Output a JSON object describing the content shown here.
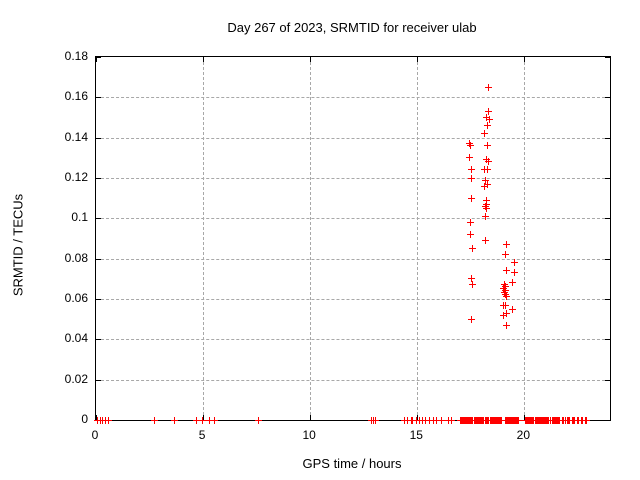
{
  "chart_data": {
    "type": "scatter",
    "title": "Day 267 of 2023, SRMTID for receiver ulab",
    "xlabel": "GPS time / hours",
    "ylabel": "SRMTID / TECUs",
    "xlim": [
      0,
      24
    ],
    "ylim": [
      0,
      0.18
    ],
    "grid": true,
    "legend": "none",
    "marker": "plus",
    "marker_color": "#ff0000",
    "xticks": [
      {
        "v": 0,
        "label": "0"
      },
      {
        "v": 5,
        "label": "5"
      },
      {
        "v": 10,
        "label": "10"
      },
      {
        "v": 15,
        "label": "15"
      },
      {
        "v": 20,
        "label": "20"
      }
    ],
    "yticks": [
      {
        "v": 0,
        "label": "0"
      },
      {
        "v": 0.02,
        "label": "0.02"
      },
      {
        "v": 0.04,
        "label": "0.04"
      },
      {
        "v": 0.06,
        "label": "0.06"
      },
      {
        "v": 0.08,
        "label": "0.08"
      },
      {
        "v": 0.1,
        "label": "0.1"
      },
      {
        "v": 0.12,
        "label": "0.12"
      },
      {
        "v": 0.14,
        "label": "0.14"
      },
      {
        "v": 0.16,
        "label": "0.16"
      },
      {
        "v": 0.18,
        "label": "0.18"
      }
    ],
    "series": [
      {
        "name": "SRMTID",
        "color": "#ff0000",
        "points": [
          [
            18.32,
            0.165
          ],
          [
            18.35,
            0.153
          ],
          [
            18.22,
            0.15
          ],
          [
            18.36,
            0.149
          ],
          [
            18.26,
            0.146
          ],
          [
            18.16,
            0.142
          ],
          [
            17.45,
            0.137
          ],
          [
            17.5,
            0.136
          ],
          [
            18.26,
            0.136
          ],
          [
            17.43,
            0.13
          ],
          [
            18.22,
            0.129
          ],
          [
            18.32,
            0.128
          ],
          [
            17.52,
            0.124
          ],
          [
            18.15,
            0.124
          ],
          [
            18.27,
            0.124
          ],
          [
            17.55,
            0.12
          ],
          [
            18.18,
            0.119
          ],
          [
            18.29,
            0.117
          ],
          [
            18.15,
            0.116
          ],
          [
            17.54,
            0.11
          ],
          [
            18.22,
            0.109
          ],
          [
            18.25,
            0.107
          ],
          [
            18.21,
            0.106
          ],
          [
            18.24,
            0.105
          ],
          [
            18.21,
            0.101
          ],
          [
            17.47,
            0.098
          ],
          [
            17.48,
            0.092
          ],
          [
            18.18,
            0.089
          ],
          [
            19.15,
            0.087
          ],
          [
            17.57,
            0.085
          ],
          [
            19.12,
            0.082
          ],
          [
            19.54,
            0.078
          ],
          [
            19.18,
            0.074
          ],
          [
            19.55,
            0.073
          ],
          [
            17.55,
            0.07
          ],
          [
            19.46,
            0.068
          ],
          [
            19.07,
            0.067
          ],
          [
            17.58,
            0.067
          ],
          [
            19.1,
            0.066
          ],
          [
            19.05,
            0.065
          ],
          [
            19.11,
            0.064
          ],
          [
            19.07,
            0.063
          ],
          [
            19.13,
            0.062
          ],
          [
            19.16,
            0.061
          ],
          [
            19.05,
            0.057
          ],
          [
            19.14,
            0.057
          ],
          [
            19.46,
            0.055
          ],
          [
            19.15,
            0.053
          ],
          [
            19.05,
            0.052
          ],
          [
            17.55,
            0.05
          ],
          [
            19.15,
            0.047
          ],
          [
            0.05,
            0
          ],
          [
            0.2,
            0
          ],
          [
            0.32,
            0
          ],
          [
            0.45,
            0
          ],
          [
            0.58,
            0
          ],
          [
            2.75,
            0
          ],
          [
            3.68,
            0
          ],
          [
            4.7,
            0
          ],
          [
            4.97,
            0
          ],
          [
            5.32,
            0
          ],
          [
            5.53,
            0
          ],
          [
            7.58,
            0
          ],
          [
            12.85,
            0
          ],
          [
            12.96,
            0
          ],
          [
            13.07,
            0
          ],
          [
            14.4,
            0
          ],
          [
            14.55,
            0
          ],
          [
            14.73,
            0
          ],
          [
            14.78,
            0
          ],
          [
            14.98,
            0
          ],
          [
            15.09,
            0
          ],
          [
            15.25,
            0
          ],
          [
            15.37,
            0
          ],
          [
            15.56,
            0
          ],
          [
            15.77,
            0
          ],
          [
            15.92,
            0
          ],
          [
            16.12,
            0
          ],
          [
            16.47,
            0
          ],
          [
            16.62,
            0
          ],
          [
            17.0,
            0
          ],
          [
            17.05,
            0
          ],
          [
            17.1,
            0
          ],
          [
            17.15,
            0
          ],
          [
            17.2,
            0
          ],
          [
            17.25,
            0
          ],
          [
            17.3,
            0
          ],
          [
            17.35,
            0
          ],
          [
            17.4,
            0
          ],
          [
            17.45,
            0
          ],
          [
            17.5,
            0
          ],
          [
            17.55,
            0
          ],
          [
            17.6,
            0
          ],
          [
            17.65,
            0
          ],
          [
            17.7,
            0
          ],
          [
            17.75,
            0
          ],
          [
            17.8,
            0
          ],
          [
            17.85,
            0
          ],
          [
            17.9,
            0
          ],
          [
            17.95,
            0
          ],
          [
            18.0,
            0
          ],
          [
            18.05,
            0
          ],
          [
            18.1,
            0
          ],
          [
            18.2,
            0
          ],
          [
            18.25,
            0
          ],
          [
            18.3,
            0
          ],
          [
            18.35,
            0
          ],
          [
            18.4,
            0
          ],
          [
            18.45,
            0
          ],
          [
            18.5,
            0
          ],
          [
            18.55,
            0
          ],
          [
            18.6,
            0
          ],
          [
            18.65,
            0
          ],
          [
            18.7,
            0
          ],
          [
            18.75,
            0
          ],
          [
            18.8,
            0
          ],
          [
            18.85,
            0
          ],
          [
            18.9,
            0
          ],
          [
            18.95,
            0
          ],
          [
            19.1,
            0
          ],
          [
            19.15,
            0
          ],
          [
            19.2,
            0
          ],
          [
            19.25,
            0
          ],
          [
            19.3,
            0
          ],
          [
            19.35,
            0
          ],
          [
            19.4,
            0
          ],
          [
            19.45,
            0
          ],
          [
            19.5,
            0
          ],
          [
            19.55,
            0
          ],
          [
            19.6,
            0
          ],
          [
            19.65,
            0
          ],
          [
            19.7,
            0
          ],
          [
            19.75,
            0
          ],
          [
            20.05,
            0
          ],
          [
            20.1,
            0
          ],
          [
            20.15,
            0
          ],
          [
            20.2,
            0
          ],
          [
            20.25,
            0
          ],
          [
            20.3,
            0
          ],
          [
            20.35,
            0
          ],
          [
            20.4,
            0
          ],
          [
            20.45,
            0
          ],
          [
            20.5,
            0
          ],
          [
            20.55,
            0
          ],
          [
            20.6,
            0
          ],
          [
            20.65,
            0
          ],
          [
            20.7,
            0
          ],
          [
            20.75,
            0
          ],
          [
            20.8,
            0
          ],
          [
            20.85,
            0
          ],
          [
            20.9,
            0
          ],
          [
            20.95,
            0
          ],
          [
            21.0,
            0
          ],
          [
            21.05,
            0
          ],
          [
            21.1,
            0
          ],
          [
            21.15,
            0
          ],
          [
            21.2,
            0
          ],
          [
            21.3,
            0
          ],
          [
            21.35,
            0
          ],
          [
            21.4,
            0
          ],
          [
            21.45,
            0
          ],
          [
            21.5,
            0
          ],
          [
            21.55,
            0
          ],
          [
            21.6,
            0
          ],
          [
            21.65,
            0
          ],
          [
            21.78,
            0
          ],
          [
            21.84,
            0
          ],
          [
            21.9,
            0
          ],
          [
            22.0,
            0
          ],
          [
            22.06,
            0
          ],
          [
            22.12,
            0
          ],
          [
            22.25,
            0
          ],
          [
            22.3,
            0
          ],
          [
            22.36,
            0
          ],
          [
            22.46,
            0
          ],
          [
            22.52,
            0
          ],
          [
            22.65,
            0
          ],
          [
            22.7,
            0
          ],
          [
            22.85,
            0
          ],
          [
            22.9,
            0
          ]
        ]
      }
    ]
  }
}
